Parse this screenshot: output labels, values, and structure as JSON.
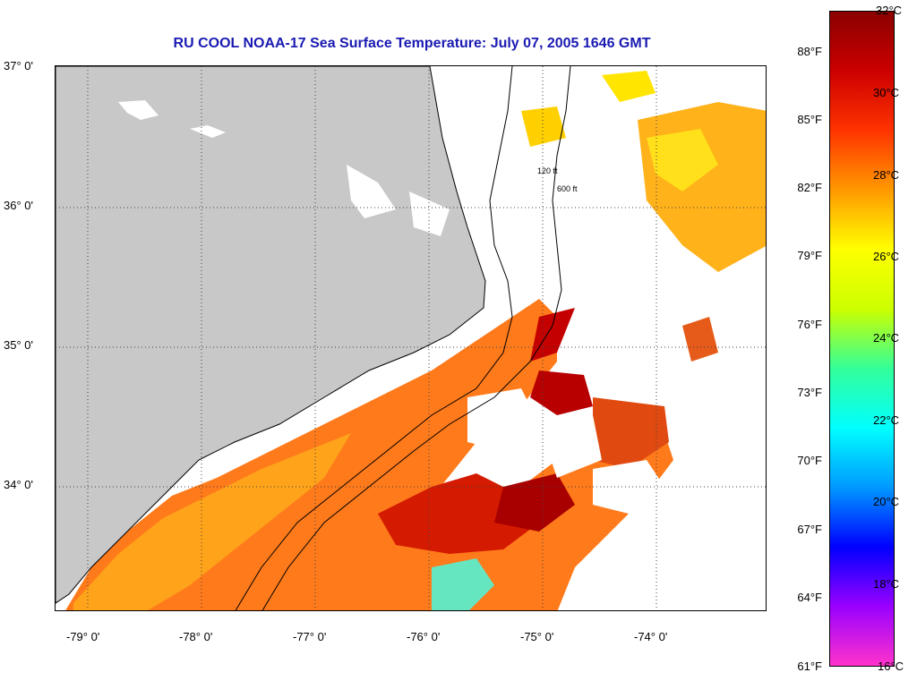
{
  "title": "RU COOL  NOAA-17  Sea Surface Temperature:  July 07, 2005 1646 GMT",
  "map": {
    "lon_range": [
      -79.25,
      -73.85
    ],
    "lat_range": [
      33.1,
      37.0
    ],
    "lat_labels": [
      {
        "value": 37,
        "text": "37° 0'"
      },
      {
        "value": 36,
        "text": "36° 0'"
      },
      {
        "value": 35,
        "text": "35° 0'"
      },
      {
        "value": 34,
        "text": "34° 0'"
      }
    ],
    "lon_labels": [
      {
        "value": -79,
        "text": "-79° 0'"
      },
      {
        "value": -78,
        "text": "-78° 0'"
      },
      {
        "value": -77,
        "text": "-77° 0'"
      },
      {
        "value": -76,
        "text": "-76° 0'"
      },
      {
        "value": -75,
        "text": "-75° 0'"
      },
      {
        "value": -74,
        "text": "-74° 0'"
      }
    ],
    "land_color": "#c8c8c8",
    "cloud_color": "#ffffff",
    "isobath_labels": [
      "120 ft",
      "600 ft"
    ]
  },
  "colorbar": {
    "fahrenheit": [
      {
        "value": 88,
        "text": "88°F"
      },
      {
        "value": 85,
        "text": "85°F"
      },
      {
        "value": 82,
        "text": "82°F"
      },
      {
        "value": 79,
        "text": "79°F"
      },
      {
        "value": 76,
        "text": "76°F"
      },
      {
        "value": 73,
        "text": "73°F"
      },
      {
        "value": 70,
        "text": "70°F"
      },
      {
        "value": 67,
        "text": "67°F"
      },
      {
        "value": 64,
        "text": "64°F"
      },
      {
        "value": 61,
        "text": "61°F"
      }
    ],
    "celsius": [
      {
        "value": 32,
        "text": "32°C"
      },
      {
        "value": 30,
        "text": "30°C"
      },
      {
        "value": 28,
        "text": "28°C"
      },
      {
        "value": 26,
        "text": "26°C"
      },
      {
        "value": 24,
        "text": "24°C"
      },
      {
        "value": 22,
        "text": "22°C"
      },
      {
        "value": 20,
        "text": "20°C"
      },
      {
        "value": 18,
        "text": "18°C"
      },
      {
        "value": 16,
        "text": "16°C"
      }
    ],
    "range_c": [
      16,
      32
    ],
    "stops": [
      "#ff33cc",
      "#9900ff",
      "#0000ff",
      "#0099ff",
      "#00ffff",
      "#33ff99",
      "#ccff00",
      "#ffff00",
      "#ff9900",
      "#ff3300",
      "#cc0000",
      "#8b0000"
    ]
  }
}
